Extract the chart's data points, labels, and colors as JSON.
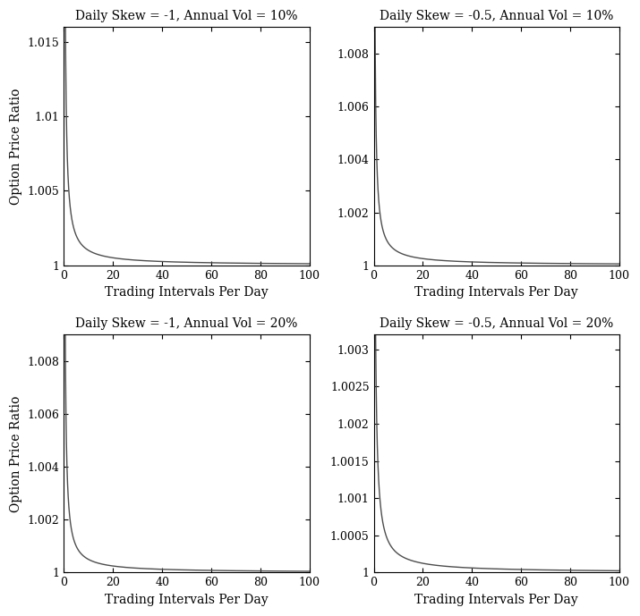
{
  "subplots": [
    {
      "title": "Daily Skew = -1, Annual Vol = 10%",
      "skew": -1.0,
      "vol": 0.1,
      "ylim": [
        1.0,
        1.016
      ],
      "yticks": [
        1.0,
        1.005,
        1.01,
        1.015
      ],
      "ytick_labels": [
        "1",
        "1.005",
        "1.01",
        "1.015"
      ],
      "curve_amplitude": 0.01
    },
    {
      "title": "Daily Skew = -0.5, Annual Vol = 10%",
      "skew": -0.5,
      "vol": 0.1,
      "ylim": [
        1.0,
        1.009
      ],
      "yticks": [
        1.0,
        1.002,
        1.004,
        1.006,
        1.008
      ],
      "ytick_labels": [
        "1",
        "1.002",
        "1.004",
        "1.006",
        "1.008"
      ],
      "curve_amplitude": 0.005
    },
    {
      "title": "Daily Skew = -1, Annual Vol = 20%",
      "skew": -1.0,
      "vol": 0.2,
      "ylim": [
        1.0,
        1.009
      ],
      "yticks": [
        1.0,
        1.002,
        1.004,
        1.006,
        1.008
      ],
      "ytick_labels": [
        "1",
        "1.002",
        "1.004",
        "1.006",
        "1.008"
      ],
      "curve_amplitude": 0.005
    },
    {
      "title": "Daily Skew = -0.5, Annual Vol = 20%",
      "skew": -0.5,
      "vol": 0.2,
      "ylim": [
        1.0,
        1.0032
      ],
      "yticks": [
        1.0,
        1.0005,
        1.001,
        1.0015,
        1.002,
        1.0025,
        1.003
      ],
      "ytick_labels": [
        "1",
        "1.0005",
        "1.001",
        "1.0015",
        "1.002",
        "1.0025",
        "1.003"
      ],
      "curve_amplitude": 0.0025
    }
  ],
  "xlim": [
    0,
    100
  ],
  "xticks": [
    0,
    20,
    40,
    60,
    80,
    100
  ],
  "xlabel": "Trading Intervals Per Day",
  "ylabel": "Option Price Ratio",
  "line_color": "#4d4d4d",
  "line_width": 1.0,
  "background_color": "#ffffff",
  "title_fontsize": 10,
  "label_fontsize": 10,
  "tick_fontsize": 9,
  "decay_power": 1.0,
  "decay_scale": 2.0
}
